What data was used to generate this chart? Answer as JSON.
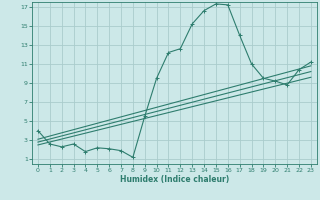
{
  "xlabel": "Humidex (Indice chaleur)",
  "bg_color": "#cce8e8",
  "grid_color": "#aacccc",
  "line_color": "#2e7d6e",
  "xlim": [
    -0.5,
    23.5
  ],
  "ylim": [
    0.5,
    17.5
  ],
  "xticks": [
    0,
    1,
    2,
    3,
    4,
    5,
    6,
    7,
    8,
    9,
    10,
    11,
    12,
    13,
    14,
    15,
    16,
    17,
    18,
    19,
    20,
    21,
    22,
    23
  ],
  "yticks": [
    1,
    3,
    5,
    7,
    9,
    11,
    13,
    15,
    17
  ],
  "curve_x": [
    0,
    1,
    2,
    3,
    4,
    5,
    6,
    7,
    8,
    9,
    10,
    11,
    12,
    13,
    14,
    15,
    16,
    17,
    18,
    19,
    20,
    21,
    22,
    23
  ],
  "curve_y": [
    4.0,
    2.6,
    2.3,
    2.6,
    1.8,
    2.2,
    2.1,
    1.9,
    1.2,
    5.5,
    9.5,
    12.2,
    12.6,
    15.2,
    16.6,
    17.3,
    17.2,
    14.0,
    11.0,
    9.5,
    9.2,
    8.8,
    10.4,
    11.2
  ],
  "line1_x": [
    0,
    23
  ],
  "line1_y": [
    2.8,
    10.2
  ],
  "line2_x": [
    0,
    23
  ],
  "line2_y": [
    2.5,
    9.6
  ],
  "line3_x": [
    0,
    23
  ],
  "line3_y": [
    3.1,
    10.8
  ]
}
